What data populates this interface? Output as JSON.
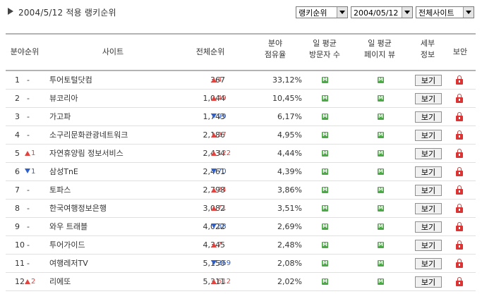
{
  "header": {
    "title": "2004/5/12 적용 랭키순위",
    "rank_select": "랭키순위",
    "date_select": "2004/05/12",
    "site_select": "전체사이트"
  },
  "columns": {
    "category_rank": "분야순위",
    "site": "사이트",
    "total_rank": "전체순위",
    "share_l1": "분야",
    "share_l2": "점유율",
    "visitors_l1": "일 평균",
    "visitors_l2": "방문자 수",
    "pageviews_l1": "일 평균",
    "pageviews_l2": "페이지 뷰",
    "detail_l1": "세부",
    "detail_l2": "정보",
    "security": "보안"
  },
  "button_label": "보기",
  "metric_icon": "M",
  "colors": {
    "up": "#e2433f",
    "down": "#2f5fc8",
    "metric_icon": "#4caa46",
    "lock": "#dd3333"
  },
  "rows": [
    {
      "rank": "1",
      "change_dir": "none",
      "change": "-",
      "site": "투어토털닷컴",
      "total": "367",
      "delta_dir": "up",
      "delta": "4",
      "share": "33,12%"
    },
    {
      "rank": "2",
      "change_dir": "none",
      "change": "-",
      "site": "뷰코리아",
      "total": "1,044",
      "delta_dir": "up",
      "delta": "49",
      "share": "10,45%"
    },
    {
      "rank": "3",
      "change_dir": "none",
      "change": "-",
      "site": "가고파",
      "total": "1,743",
      "delta_dir": "down",
      "delta": "99",
      "share": "6,17%"
    },
    {
      "rank": "4",
      "change_dir": "none",
      "change": "-",
      "site": "소구리문화관광네트워크",
      "total": "2,186",
      "delta_dir": "up",
      "delta": "27",
      "share": "4,95%"
    },
    {
      "rank": "5",
      "change_dir": "up",
      "change": "1",
      "site": "자연휴양림 정보서비스",
      "total": "2,434",
      "delta_dir": "up",
      "delta": "122",
      "share": "4,44%"
    },
    {
      "rank": "6",
      "change_dir": "down",
      "change": "1",
      "site": "삼성TnE",
      "total": "2,461",
      "delta_dir": "down",
      "delta": "70",
      "share": "4,39%"
    },
    {
      "rank": "7",
      "change_dir": "none",
      "change": "-",
      "site": "토파스",
      "total": "2,798",
      "delta_dir": "up",
      "delta": "24",
      "share": "3,86%"
    },
    {
      "rank": "8",
      "change_dir": "none",
      "change": "-",
      "site": "한국여행정보은행",
      "total": "3,082",
      "delta_dir": "up",
      "delta": "71",
      "share": "3,51%"
    },
    {
      "rank": "9",
      "change_dir": "none",
      "change": "-",
      "site": "와우 트래블",
      "total": "4,022",
      "delta_dir": "down",
      "delta": "88",
      "share": "2,69%"
    },
    {
      "rank": "10",
      "change_dir": "none",
      "change": "-",
      "site": "투어가이드",
      "total": "4,345",
      "delta_dir": "up",
      "delta": "7",
      "share": "2,48%"
    },
    {
      "rank": "11",
      "change_dir": "none",
      "change": "-",
      "site": "여행레저TV",
      "total": "5,150",
      "delta_dir": "down",
      "delta": "369",
      "share": "2,08%"
    },
    {
      "rank": "12",
      "change_dir": "up",
      "change": "2",
      "site": "리에또",
      "total": "5,311",
      "delta_dir": "up",
      "delta": "612",
      "share": "2,02%"
    }
  ]
}
